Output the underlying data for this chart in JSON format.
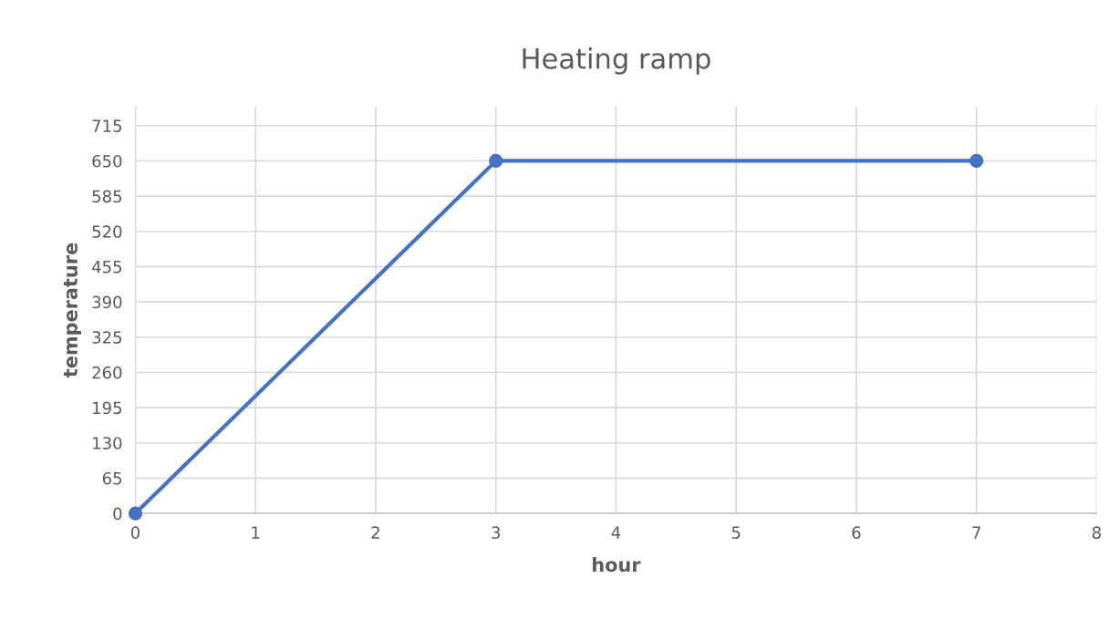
{
  "chart_data": {
    "type": "line",
    "title": "Heating ramp",
    "xlabel": "hour",
    "ylabel": "temperature",
    "series": [
      {
        "x": [
          0,
          3,
          7
        ],
        "values": [
          0,
          650,
          650
        ],
        "color": "#4472c4"
      }
    ],
    "xlim": [
      0,
      8
    ],
    "xticks": [
      0,
      1,
      2,
      3,
      4,
      5,
      6,
      7,
      8
    ],
    "ylim": [
      0,
      750
    ],
    "yticks": [
      0,
      65,
      130,
      195,
      260,
      325,
      390,
      455,
      520,
      585,
      650,
      715
    ],
    "grid": true,
    "marker": "circle",
    "line_style": "solid"
  }
}
